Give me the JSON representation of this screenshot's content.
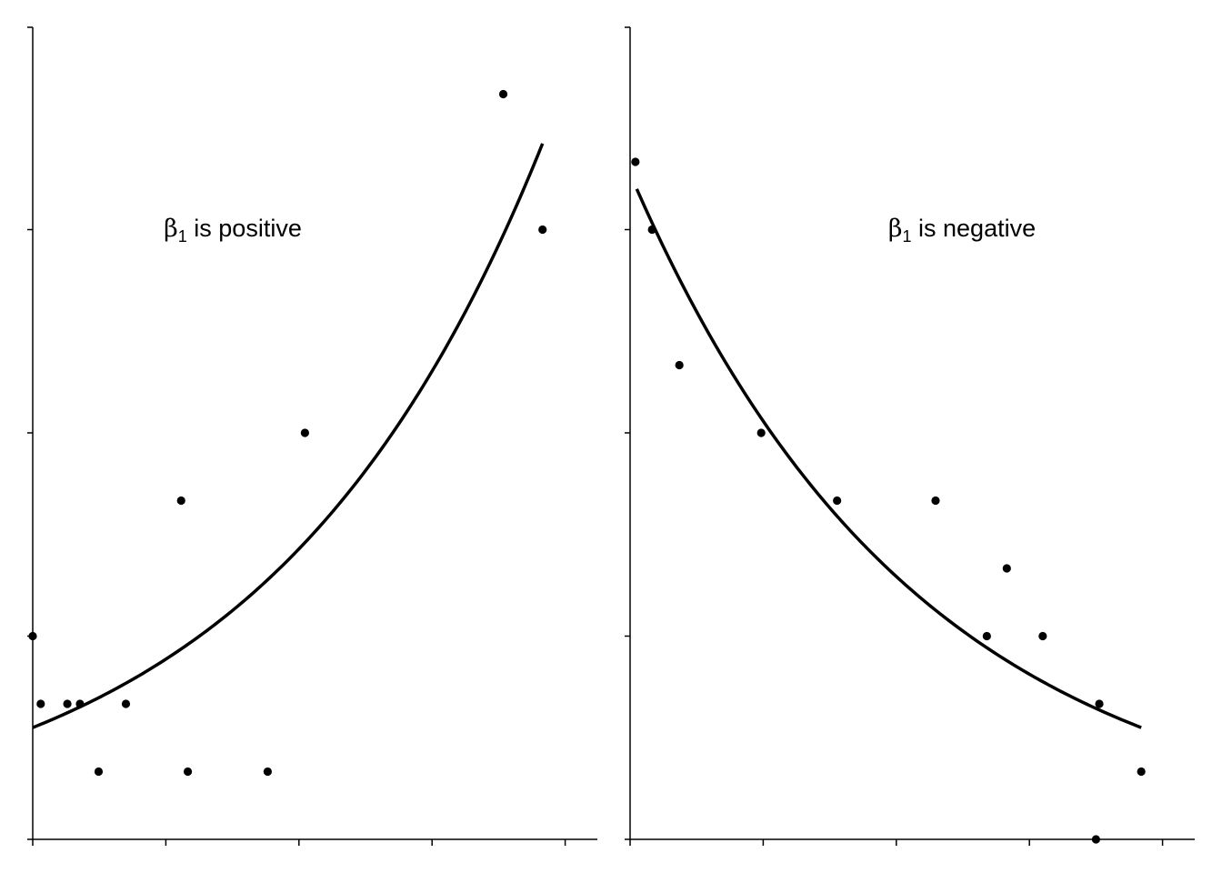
{
  "chart_data": [
    {
      "type": "scatter",
      "title": "",
      "xlabel": "",
      "ylabel": "",
      "xlim": [
        0,
        10
      ],
      "ylim": [
        0,
        12
      ],
      "x_ticks": [
        0,
        2,
        4,
        6,
        8
      ],
      "y_ticks": [
        0,
        3,
        6,
        9
      ],
      "annotation": {
        "beta": "β",
        "subscript": "1",
        "rest": " is positive"
      },
      "points": [
        {
          "x": 0.0,
          "y": 3
        },
        {
          "x": 0.12,
          "y": 2
        },
        {
          "x": 0.52,
          "y": 2
        },
        {
          "x": 0.71,
          "y": 2
        },
        {
          "x": 0.99,
          "y": 1
        },
        {
          "x": 1.4,
          "y": 2
        },
        {
          "x": 2.23,
          "y": 5
        },
        {
          "x": 2.33,
          "y": 1
        },
        {
          "x": 3.53,
          "y": 1
        },
        {
          "x": 4.09,
          "y": 6
        },
        {
          "x": 7.07,
          "y": 11
        },
        {
          "x": 7.66,
          "y": 9
        }
      ],
      "fit_curve": {
        "x_start": 0.0,
        "x_end": 7.66,
        "y_at_start": 1.65,
        "y_at_end": 10.27
      }
    },
    {
      "type": "scatter",
      "title": "",
      "xlabel": "",
      "ylabel": "",
      "xlim": [
        0,
        10
      ],
      "ylim": [
        0,
        12
      ],
      "x_ticks": [
        0,
        2,
        4,
        6,
        8
      ],
      "y_ticks": [
        0,
        3,
        6,
        9
      ],
      "annotation": {
        "beta": "β",
        "subscript": "1",
        "rest": " is negative"
      },
      "points": [
        {
          "x": 0.08,
          "y": 10
        },
        {
          "x": 0.33,
          "y": 9
        },
        {
          "x": 0.74,
          "y": 7
        },
        {
          "x": 1.97,
          "y": 6
        },
        {
          "x": 3.11,
          "y": 5
        },
        {
          "x": 4.59,
          "y": 5
        },
        {
          "x": 5.36,
          "y": 3
        },
        {
          "x": 5.66,
          "y": 4
        },
        {
          "x": 6.2,
          "y": 3
        },
        {
          "x": 7.0,
          "y": 0
        },
        {
          "x": 7.05,
          "y": 2
        },
        {
          "x": 7.68,
          "y": 1
        }
      ],
      "fit_curve": {
        "x_start": 0.1,
        "x_end": 7.68,
        "y_at_start": 9.6,
        "y_at_end": 1.65
      }
    }
  ]
}
